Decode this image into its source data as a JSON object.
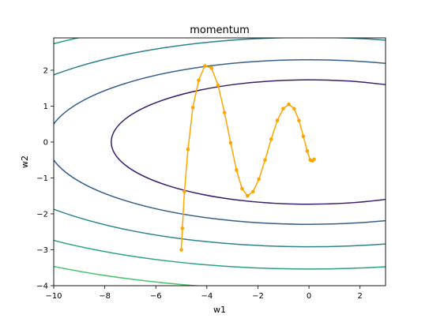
{
  "chart_data": {
    "type": "line",
    "title": "momentum",
    "xlabel": "w1",
    "ylabel": "w2",
    "xlim": [
      -10,
      3
    ],
    "ylim": [
      -4,
      2.9
    ],
    "x_ticks": [
      -10,
      -8,
      -6,
      -4,
      -2,
      0,
      2
    ],
    "x_tick_labels": [
      "−10",
      "−8",
      "−6",
      "−4",
      "−2",
      "0",
      "2"
    ],
    "y_ticks": [
      -4,
      -3,
      -2,
      -1,
      0,
      1,
      2
    ],
    "y_tick_labels": [
      "−4",
      "−3",
      "−2",
      "−1",
      "0",
      "1",
      "2"
    ],
    "grid": false,
    "contour": {
      "function": "0.1*w1^2 + 2*w2^2",
      "levels": [
        6.0,
        10.5,
        17.0,
        25.0,
        34.0,
        45.0
      ],
      "colors": [
        "#3b1c6b",
        "#345f8d",
        "#2c838e",
        "#2aa086",
        "#4cc26c",
        "#9ad73c"
      ]
    },
    "series": [
      {
        "color": "#ffa500",
        "marker": "circle",
        "x": [
          -5.0,
          -4.96,
          -4.88,
          -4.74,
          -4.55,
          -4.32,
          -4.08,
          -3.82,
          -3.56,
          -3.31,
          -3.07,
          -2.84,
          -2.62,
          -2.41,
          -2.19,
          -1.96,
          -1.72,
          -1.48,
          -1.24,
          -1.01,
          -0.79,
          -0.58,
          -0.39,
          -0.22,
          -0.07,
          0.05,
          0.14,
          0.2
        ],
        "y": [
          -3.0,
          -2.4,
          -1.38,
          -0.2,
          0.96,
          1.72,
          2.12,
          2.06,
          1.58,
          0.82,
          -0.02,
          -0.78,
          -1.3,
          -1.5,
          -1.38,
          -1.03,
          -0.5,
          0.08,
          0.6,
          0.93,
          1.05,
          0.93,
          0.6,
          0.16,
          -0.25,
          -0.5,
          -0.52,
          -0.48
        ]
      }
    ]
  }
}
